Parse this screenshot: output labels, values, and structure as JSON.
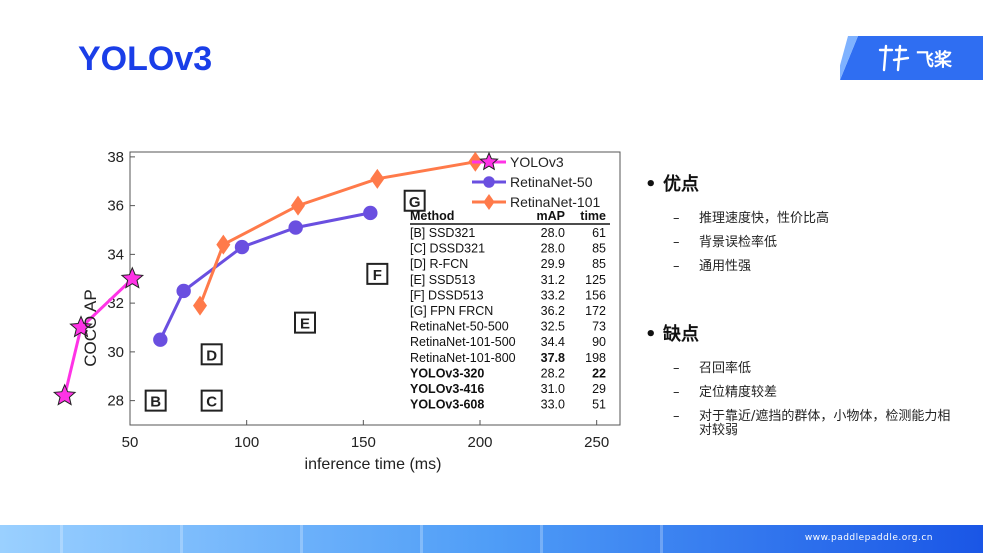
{
  "slide": {
    "title": "YOLOv3",
    "logo_text": "飞桨",
    "url": "www.paddlepaddle.org.cn"
  },
  "bullets": {
    "pros_title": "优点",
    "pros": [
      "推理速度快，性价比高",
      "背景误检率低",
      "通用性强"
    ],
    "cons_title": "缺点",
    "cons": [
      "召回率低",
      "定位精度较差",
      "对于靠近/遮挡的群体，小物体，检测能力相对较弱"
    ]
  },
  "chart_data": {
    "type": "line",
    "xlabel": "inference time (ms)",
    "ylabel": "COCO AP",
    "xlim": [
      50,
      260
    ],
    "ylim": [
      27,
      38.2
    ],
    "xticks": [
      50,
      100,
      150,
      200,
      250
    ],
    "yticks": [
      28,
      30,
      32,
      34,
      36,
      38
    ],
    "series": [
      {
        "name": "YOLOv3",
        "color": "#ff33e6",
        "marker": "star",
        "points": [
          [
            22,
            28.2
          ],
          [
            29,
            31.0
          ],
          [
            51,
            33.0
          ]
        ]
      },
      {
        "name": "RetinaNet-50",
        "color": "#6a4fe0",
        "marker": "circle",
        "points": [
          [
            63,
            30.5
          ],
          [
            73,
            32.5
          ],
          [
            98,
            34.3
          ],
          [
            121,
            35.1
          ],
          [
            153,
            35.7
          ]
        ]
      },
      {
        "name": "RetinaNet-101",
        "color": "#ff7a4a",
        "marker": "diamond",
        "points": [
          [
            80,
            31.9
          ],
          [
            90,
            34.4
          ],
          [
            122,
            36.0
          ],
          [
            156,
            37.1
          ],
          [
            198,
            37.8
          ]
        ]
      }
    ],
    "letter_markers": [
      {
        "label": "B",
        "x": 61,
        "y": 28.0
      },
      {
        "label": "C",
        "x": 85,
        "y": 28.0
      },
      {
        "label": "D",
        "x": 85,
        "y": 29.9
      },
      {
        "label": "E",
        "x": 125,
        "y": 31.2
      },
      {
        "label": "F",
        "x": 156,
        "y": 33.2
      },
      {
        "label": "G",
        "x": 172,
        "y": 36.2
      }
    ],
    "table": {
      "headers": [
        "Method",
        "mAP",
        "time"
      ],
      "rows": [
        {
          "method": "[B] SSD321",
          "map": "28.0",
          "time": "61",
          "bold": false
        },
        {
          "method": "[C] DSSD321",
          "map": "28.0",
          "time": "85",
          "bold": false
        },
        {
          "method": "[D] R-FCN",
          "map": "29.9",
          "time": "85",
          "bold": false
        },
        {
          "method": "[E] SSD513",
          "map": "31.2",
          "time": "125",
          "bold": false
        },
        {
          "method": "[F] DSSD513",
          "map": "33.2",
          "time": "156",
          "bold": false
        },
        {
          "method": "[G] FPN FRCN",
          "map": "36.2",
          "time": "172",
          "bold": false
        },
        {
          "method": "RetinaNet-50-500",
          "map": "32.5",
          "time": "73",
          "bold": false
        },
        {
          "method": "RetinaNet-101-500",
          "map": "34.4",
          "time": "90",
          "bold": false
        },
        {
          "method": "RetinaNet-101-800",
          "map": "37.8",
          "time": "198",
          "bold": false,
          "bold_map": true
        },
        {
          "method": "YOLOv3-320",
          "map": "28.2",
          "time": "22",
          "bold": true,
          "bold_time": true
        },
        {
          "method": "YOLOv3-416",
          "map": "31.0",
          "time": "29",
          "bold": true
        },
        {
          "method": "YOLOv3-608",
          "map": "33.0",
          "time": "51",
          "bold": true
        }
      ]
    }
  }
}
